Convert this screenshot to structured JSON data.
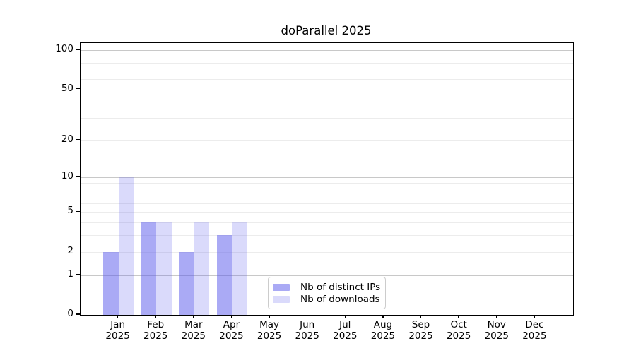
{
  "title": "doParallel 2025",
  "colors": {
    "bar_distinct_ips": "rgba(85,85,235,0.5)",
    "bar_downloads": "rgba(85,85,235,0.22)",
    "grid_major": "#c8c8c8",
    "grid_minor": "#ececec",
    "axis": "#000000",
    "text": "#000000",
    "legend_border": "#cccccc"
  },
  "chart_data": {
    "type": "bar",
    "title": "doParallel 2025",
    "categories": [
      "Jan",
      "Feb",
      "Mar",
      "Apr",
      "May",
      "Jun",
      "Jul",
      "Aug",
      "Sep",
      "Oct",
      "Nov",
      "Dec"
    ],
    "year": "2025",
    "series": [
      {
        "name": "Nb of distinct IPs",
        "values": [
          2,
          4,
          2,
          3,
          0,
          0,
          0,
          0,
          0,
          0,
          0,
          0
        ]
      },
      {
        "name": "Nb of downloads",
        "values": [
          10,
          4,
          4,
          4,
          0,
          0,
          0,
          0,
          0,
          0,
          0,
          0
        ]
      }
    ],
    "xlabel": "",
    "ylabel": "",
    "y_scale": "log1p",
    "ylim": [
      0,
      100
    ],
    "y_ticks": [
      0,
      1,
      2,
      5,
      10,
      20,
      50,
      100
    ],
    "y_gridlines_major": [
      1,
      10,
      100
    ],
    "y_gridlines_minor": [
      2,
      3,
      4,
      5,
      6,
      7,
      8,
      9,
      20,
      30,
      40,
      50,
      60,
      70,
      80,
      90
    ],
    "grid": "both",
    "legend_position": "lower center"
  }
}
